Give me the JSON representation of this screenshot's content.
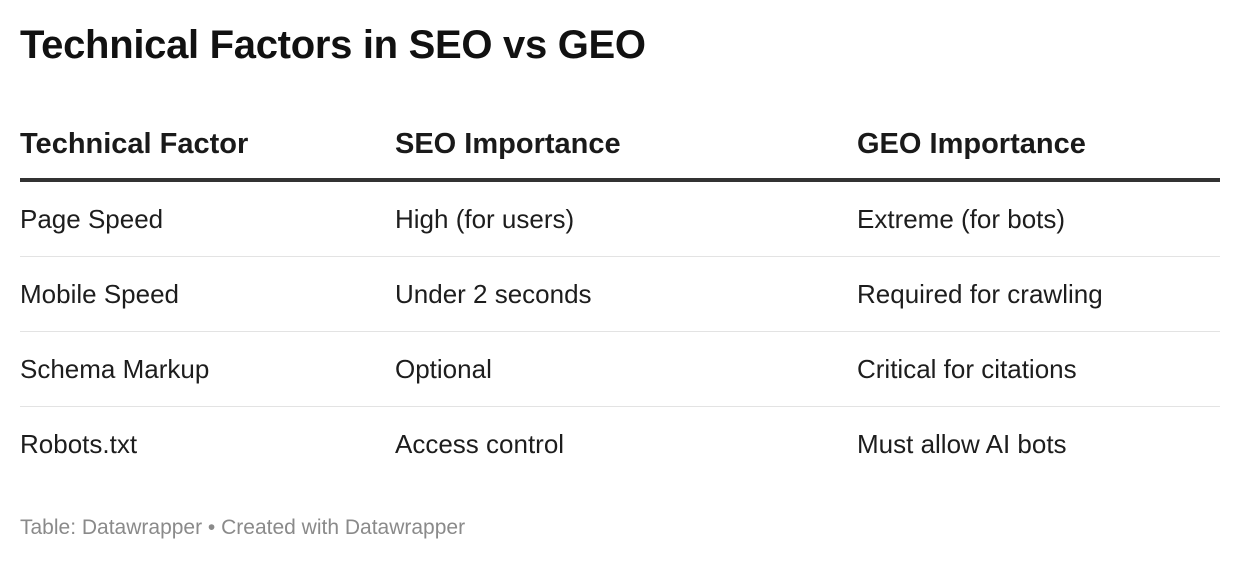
{
  "title": "Technical Factors in SEO vs GEO",
  "footer": "Table: Datawrapper • Created with Datawrapper",
  "chart_data": {
    "type": "table",
    "title": "Technical Factors in SEO vs GEO",
    "columns": [
      "Technical Factor",
      "SEO Importance",
      "GEO Importance"
    ],
    "rows": [
      [
        "Page Speed",
        "High (for users)",
        "Extreme (for bots)"
      ],
      [
        "Mobile Speed",
        "Under 2 seconds",
        "Required for crawling"
      ],
      [
        "Schema Markup",
        "Optional",
        "Critical for citations"
      ],
      [
        "Robots.txt",
        "Access control",
        "Must allow AI bots"
      ]
    ]
  },
  "colors": {
    "title": "#111111",
    "text": "#1d1d1d",
    "header_rule": "#333333",
    "row_rule": "#e3e3e3",
    "footer": "#8a8a8a"
  }
}
